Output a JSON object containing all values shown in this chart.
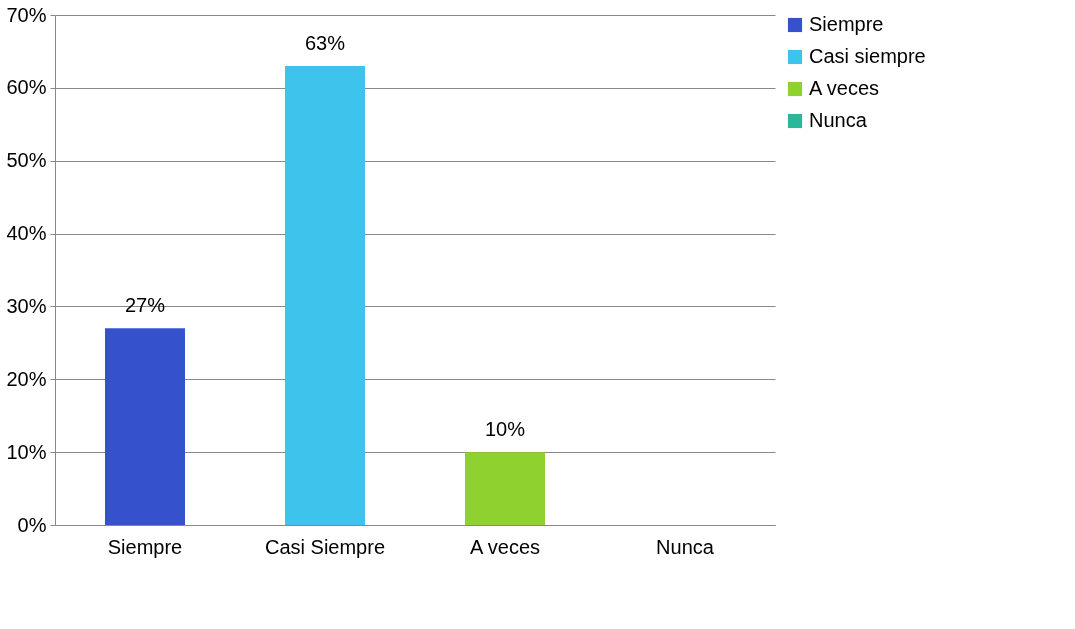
{
  "chart_data": {
    "type": "bar",
    "categories": [
      "Siempre",
      "Casi Siempre",
      "A veces",
      "Nunca"
    ],
    "series": [
      {
        "name": "Siempre",
        "color": "#3552cc",
        "values": [
          27,
          null,
          null,
          null
        ],
        "value_labels": [
          "27%",
          null,
          null,
          null
        ]
      },
      {
        "name": "Casi siempre",
        "color": "#3ec3ec",
        "values": [
          null,
          63,
          null,
          null
        ],
        "value_labels": [
          null,
          "63%",
          null,
          null
        ]
      },
      {
        "name": "A veces",
        "color": "#8fd12e",
        "values": [
          null,
          null,
          10,
          null
        ],
        "value_labels": [
          null,
          null,
          "10%",
          null
        ]
      },
      {
        "name": "Nunca",
        "color": "#2bb89a",
        "values": [
          null,
          null,
          null,
          0
        ],
        "value_labels": [
          null,
          null,
          null,
          null
        ]
      }
    ],
    "ylim": [
      0,
      70
    ],
    "yticks": [
      {
        "value": 0,
        "label": "0%"
      },
      {
        "value": 10,
        "label": "10%"
      },
      {
        "value": 20,
        "label": "20%"
      },
      {
        "value": 30,
        "label": "30%"
      },
      {
        "value": 40,
        "label": "40%"
      },
      {
        "value": 50,
        "label": "50%"
      },
      {
        "value": 60,
        "label": "60%"
      },
      {
        "value": 70,
        "label": "70%"
      }
    ],
    "grid": "y",
    "legend": "right"
  }
}
